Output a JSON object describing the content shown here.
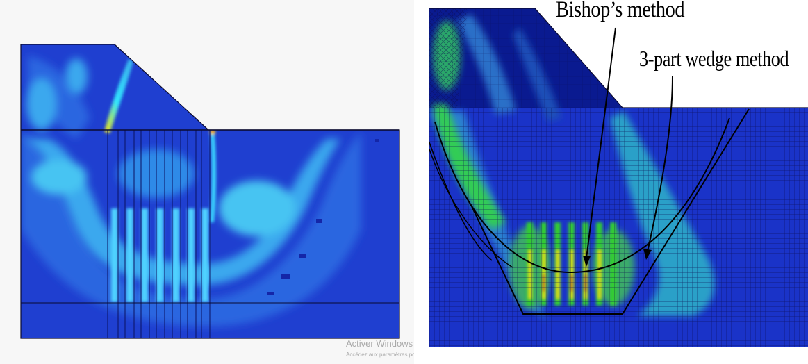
{
  "left_panel": {
    "watermark": {
      "title": "Activer Windows",
      "subtitle": "Accédez aux paramètres pour activer Windows."
    },
    "colors": {
      "background": "#1f3fd0",
      "light": "#38b8f0",
      "cyan": "#30e6ff",
      "yellow": "#ffe000",
      "red": "#ff2000"
    }
  },
  "right_panel": {
    "labels": {
      "bishop": "Bishop’s method",
      "wedge": "3-part wedge method"
    },
    "colors": {
      "dark": "#0a1a90",
      "blue": "#1a33c8",
      "teal": "#2ab0c0",
      "green": "#33cc33",
      "yellow": "#e8e000",
      "red": "#e02010"
    }
  }
}
